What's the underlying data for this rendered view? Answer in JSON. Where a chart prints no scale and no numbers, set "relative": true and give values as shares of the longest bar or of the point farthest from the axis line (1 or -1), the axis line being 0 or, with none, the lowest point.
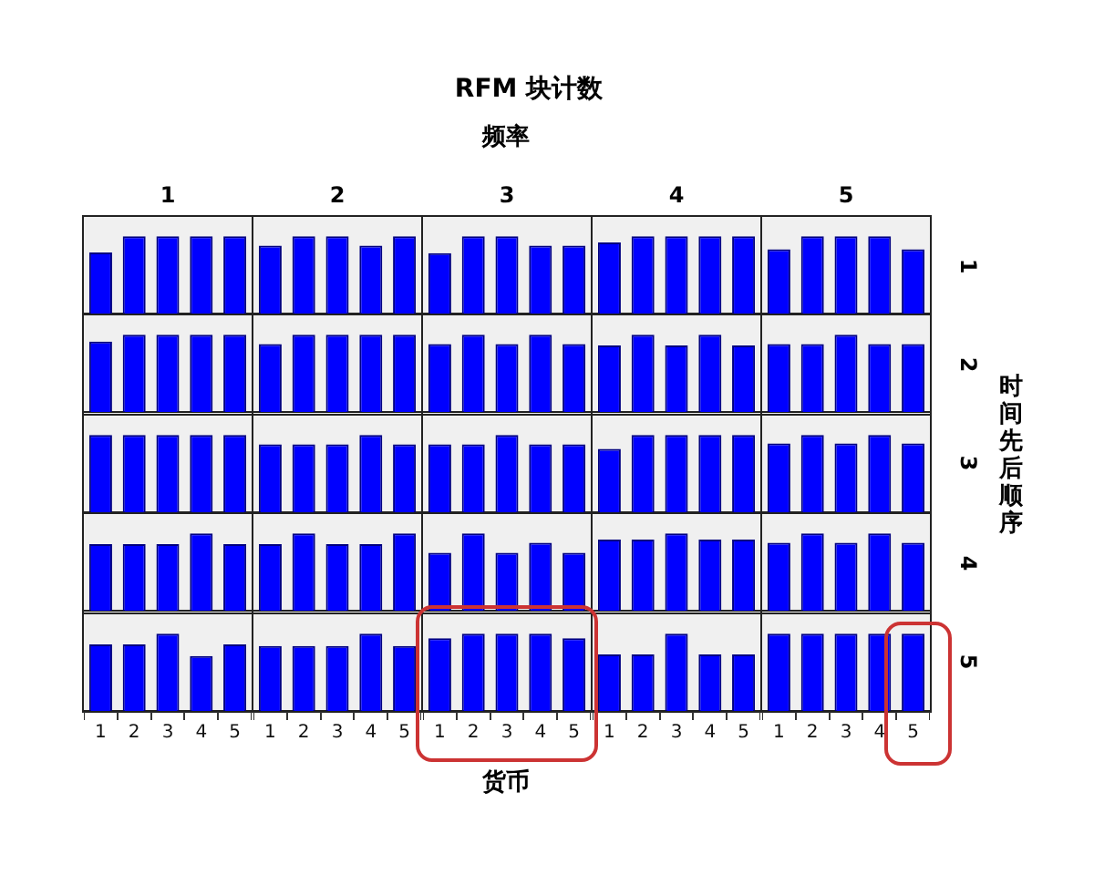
{
  "chart_data": [
    {
      "type": "other",
      "title": "RFM 块计数",
      "annotations": [
        "频率",
        "时间先后顺序",
        "货币"
      ]
    },
    {
      "type": "bar",
      "relative": true,
      "title": "1",
      "categories": [
        null,
        null,
        null,
        null,
        null
      ],
      "values": [
        0.79,
        1,
        1,
        1,
        1
      ],
      "color": "#0000ff"
    },
    {
      "type": "bar",
      "relative": true,
      "title": "2",
      "categories": [
        null,
        null,
        null,
        null,
        null
      ],
      "values": [
        0.88,
        1,
        1,
        0.88,
        1
      ],
      "color": "#0000ff"
    },
    {
      "type": "bar",
      "relative": true,
      "title": "3",
      "categories": [
        null,
        null,
        null,
        null,
        null
      ],
      "values": [
        0.78,
        1,
        1,
        0.88,
        0.88
      ],
      "color": "#0000ff"
    },
    {
      "type": "bar",
      "relative": true,
      "title": "4",
      "categories": [
        null,
        null,
        null,
        null,
        null
      ],
      "values": [
        0.92,
        1,
        1,
        1,
        1
      ],
      "color": "#0000ff"
    },
    {
      "type": "bar",
      "relative": true,
      "title": "5",
      "y2label": "1",
      "categories": [
        null,
        null,
        null,
        null,
        null
      ],
      "values": [
        0.83,
        1,
        1,
        1,
        0.83
      ],
      "color": "#0000ff"
    },
    {
      "type": "bar",
      "relative": true,
      "categories": [
        null,
        null,
        null,
        null,
        null
      ],
      "values": [
        0.91,
        1,
        1,
        1,
        1
      ],
      "color": "#0000ff"
    },
    {
      "type": "bar",
      "relative": true,
      "categories": [
        null,
        null,
        null,
        null,
        null
      ],
      "values": [
        0.88,
        1,
        1,
        1,
        1
      ],
      "color": "#0000ff"
    },
    {
      "type": "bar",
      "relative": true,
      "categories": [
        null,
        null,
        null,
        null,
        null
      ],
      "values": [
        0.88,
        1,
        0.88,
        1,
        0.88
      ],
      "color": "#0000ff"
    },
    {
      "type": "bar",
      "relative": true,
      "categories": [
        null,
        null,
        null,
        null,
        null
      ],
      "values": [
        0.86,
        1,
        0.86,
        1,
        0.86
      ],
      "color": "#0000ff"
    },
    {
      "type": "bar",
      "relative": true,
      "y2label": "2",
      "categories": [
        null,
        null,
        null,
        null,
        null
      ],
      "values": [
        0.88,
        0.88,
        1,
        0.88,
        0.88
      ],
      "color": "#0000ff"
    },
    {
      "type": "bar",
      "relative": true,
      "categories": [
        null,
        null,
        null,
        null,
        null
      ],
      "values": [
        1,
        1,
        1,
        1,
        1
      ],
      "color": "#0000ff"
    },
    {
      "type": "bar",
      "relative": true,
      "categories": [
        null,
        null,
        null,
        null,
        null
      ],
      "values": [
        0.88,
        0.88,
        0.88,
        1,
        0.88
      ],
      "color": "#0000ff"
    },
    {
      "type": "bar",
      "relative": true,
      "categories": [
        null,
        null,
        null,
        null,
        null
      ],
      "values": [
        0.88,
        0.88,
        1,
        0.88,
        0.88
      ],
      "color": "#0000ff"
    },
    {
      "type": "bar",
      "relative": true,
      "categories": [
        null,
        null,
        null,
        null,
        null
      ],
      "values": [
        0.82,
        1,
        1,
        1,
        1
      ],
      "color": "#0000ff"
    },
    {
      "type": "bar",
      "relative": true,
      "y2label": "3",
      "categories": [
        null,
        null,
        null,
        null,
        null
      ],
      "values": [
        0.89,
        1,
        0.89,
        1,
        0.89
      ],
      "color": "#0000ff"
    },
    {
      "type": "bar",
      "relative": true,
      "categories": [
        null,
        null,
        null,
        null,
        null
      ],
      "values": [
        0.86,
        0.86,
        0.86,
        1,
        0.86
      ],
      "color": "#0000ff"
    },
    {
      "type": "bar",
      "relative": true,
      "categories": [
        null,
        null,
        null,
        null,
        null
      ],
      "values": [
        0.86,
        1,
        0.86,
        0.86,
        1
      ],
      "color": "#0000ff"
    },
    {
      "type": "bar",
      "relative": true,
      "categories": [
        null,
        null,
        null,
        null,
        null
      ],
      "values": [
        0.75,
        1,
        0.75,
        0.88,
        0.75
      ],
      "color": "#0000ff"
    },
    {
      "type": "bar",
      "relative": true,
      "categories": [
        null,
        null,
        null,
        null,
        null
      ],
      "values": [
        0.92,
        0.92,
        1,
        0.92,
        0.92
      ],
      "color": "#0000ff"
    },
    {
      "type": "bar",
      "relative": true,
      "y2label": "4",
      "categories": [
        null,
        null,
        null,
        null,
        null
      ],
      "values": [
        0.88,
        1,
        0.88,
        1,
        0.88
      ],
      "color": "#0000ff"
    },
    {
      "type": "bar",
      "relative": true,
      "categories": [
        "1",
        "2",
        "3",
        "4",
        "5"
      ],
      "values": [
        0.86,
        0.86,
        1,
        0.71,
        0.86
      ],
      "color": "#0000ff"
    },
    {
      "type": "bar",
      "relative": true,
      "categories": [
        "1",
        "2",
        "3",
        "4",
        "5"
      ],
      "values": [
        0.84,
        0.84,
        0.84,
        1,
        0.84
      ],
      "color": "#0000ff"
    },
    {
      "type": "bar",
      "relative": true,
      "categories": [
        "1",
        "2",
        "3",
        "4",
        "5"
      ],
      "values": [
        0.94,
        1,
        1,
        1,
        0.94
      ],
      "color": "#0000ff"
    },
    {
      "type": "bar",
      "relative": true,
      "categories": [
        "1",
        "2",
        "3",
        "4",
        "5"
      ],
      "values": [
        0.73,
        0.73,
        1,
        0.73,
        0.73
      ],
      "color": "#0000ff"
    },
    {
      "type": "bar",
      "relative": true,
      "y2label": "5",
      "categories": [
        "1",
        "2",
        "3",
        "4",
        "5"
      ],
      "values": [
        1,
        1,
        1,
        1,
        1
      ],
      "color": "#0000ff"
    }
  ]
}
